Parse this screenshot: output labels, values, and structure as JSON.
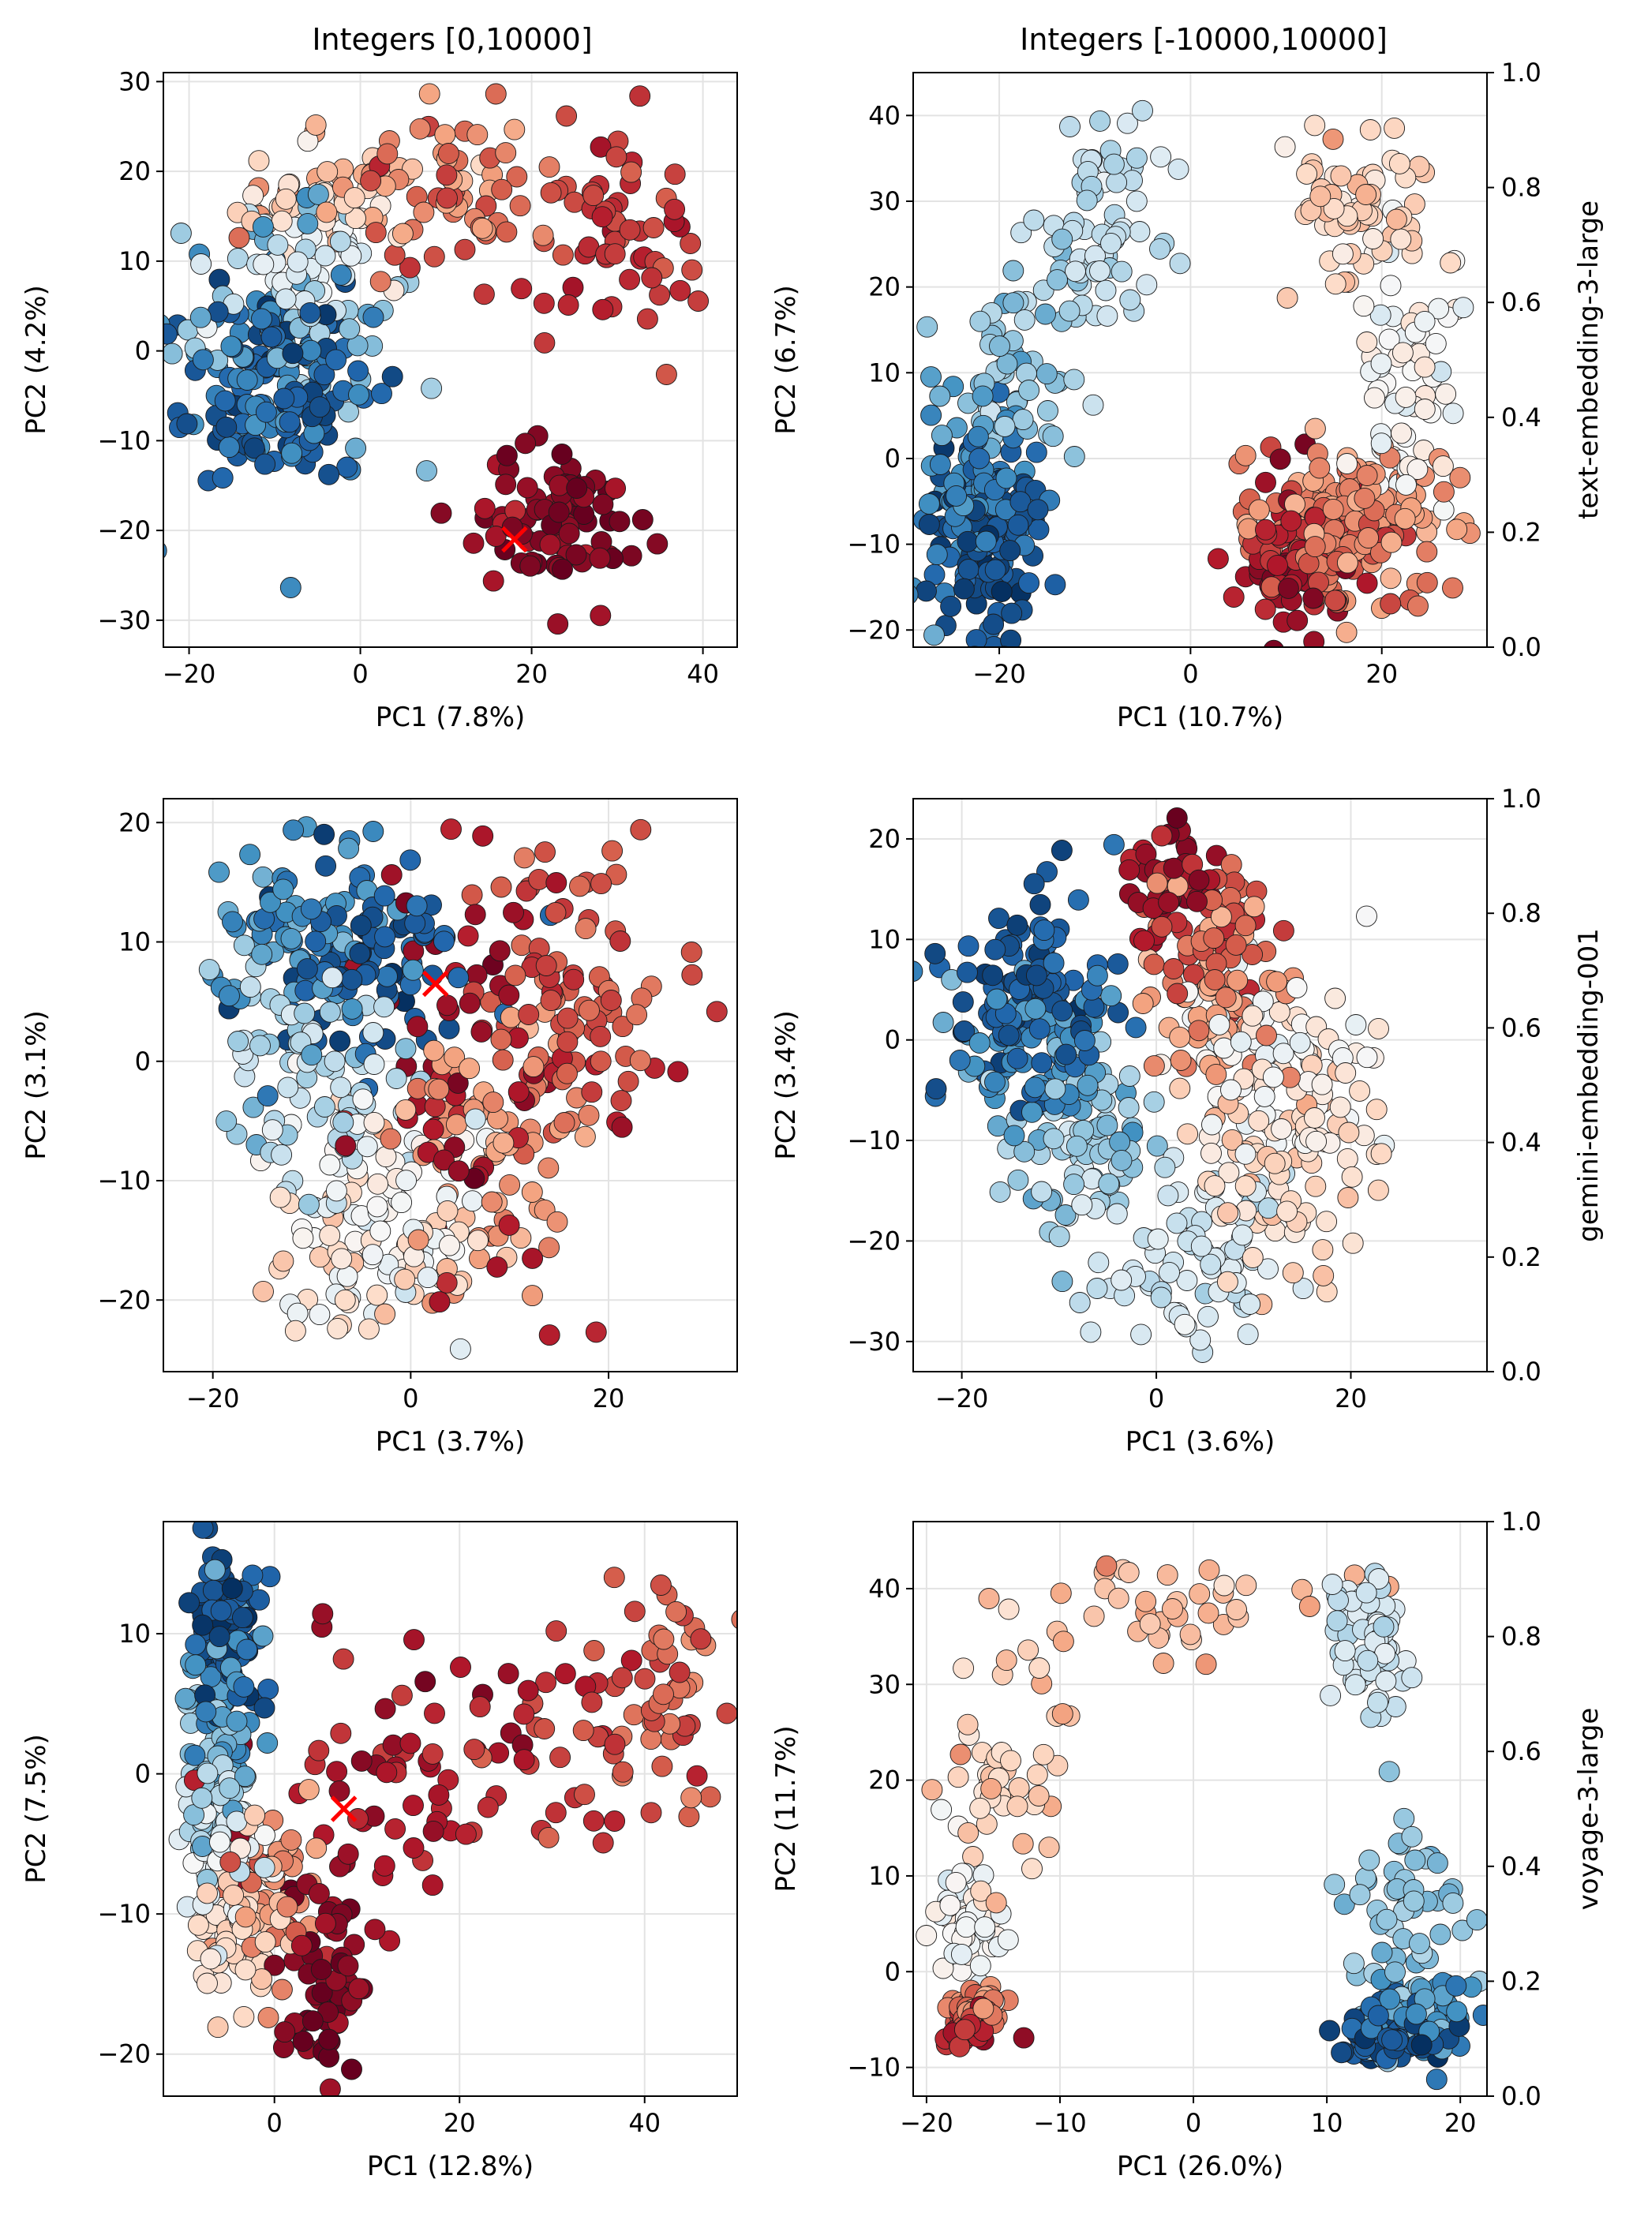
{
  "figure": {
    "column_titles": [
      "Integers [0,10000]",
      "Integers [-10000,10000]"
    ],
    "row_labels": [
      "text-embedding-3-large",
      "gemini-embedding-001",
      "voyage-3-large"
    ],
    "colorbar_ticks": [
      "0.0",
      "0.2",
      "0.4",
      "0.6",
      "0.8",
      "1.0"
    ],
    "colormap": [
      "#053061",
      "#2166ac",
      "#4393c3",
      "#92c5de",
      "#d1e5f0",
      "#f7f7f7",
      "#fddbc7",
      "#f4a582",
      "#d6604d",
      "#b2182b",
      "#67001f"
    ],
    "marker_color": "#ff0000"
  },
  "chart_data": [
    {
      "type": "scatter",
      "id": "p11",
      "xlabel": "PC1 (7.8%)",
      "ylabel": "PC2 (4.2%)",
      "xlim": [
        -23,
        44
      ],
      "ylim": [
        -33,
        31
      ],
      "xticks": [
        -20,
        0,
        20,
        40
      ],
      "yticks": [
        -30,
        -20,
        -10,
        0,
        10,
        20,
        30
      ],
      "marker": [
        18,
        -21
      ],
      "clusters": [
        {
          "c": 0.07,
          "x": [
            -10,
            5.5
          ],
          "y": [
            -4,
            5.5
          ],
          "n": 95
        },
        {
          "c": 0.18,
          "x": [
            -11,
            6
          ],
          "y": [
            -2,
            7
          ],
          "n": 70
        },
        {
          "c": 0.3,
          "x": [
            -8,
            7
          ],
          "y": [
            2,
            6
          ],
          "n": 45
        },
        {
          "c": 0.42,
          "x": [
            -6,
            6
          ],
          "y": [
            10,
            4
          ],
          "n": 35
        },
        {
          "c": 0.58,
          "x": [
            -5,
            5
          ],
          "y": [
            16,
            3.5
          ],
          "n": 35
        },
        {
          "c": 0.7,
          "x": [
            6,
            8
          ],
          "y": [
            19,
            4
          ],
          "n": 50
        },
        {
          "c": 0.8,
          "x": [
            14,
            7
          ],
          "y": [
            16,
            4
          ],
          "n": 40
        },
        {
          "c": 0.86,
          "x": [
            30,
            5
          ],
          "y": [
            12,
            7
          ],
          "n": 55
        },
        {
          "c": 0.96,
          "x": [
            24,
            5
          ],
          "y": [
            -19,
            4
          ],
          "n": 80
        }
      ]
    },
    {
      "type": "scatter",
      "id": "p12",
      "xlabel": "PC1 (10.7%)",
      "ylabel": "PC2 (6.7%)",
      "xlim": [
        -29,
        31
      ],
      "ylim": [
        -22,
        45
      ],
      "xticks": [
        -20,
        0,
        20
      ],
      "yticks": [
        -20,
        -10,
        0,
        10,
        20,
        30,
        40
      ],
      "colorbar": true,
      "clusters": [
        {
          "c": 0.06,
          "x": [
            -21,
            3
          ],
          "y": [
            -10,
            5
          ],
          "n": 110
        },
        {
          "c": 0.17,
          "x": [
            -23,
            3
          ],
          "y": [
            -3,
            6
          ],
          "n": 80
        },
        {
          "c": 0.3,
          "x": [
            -18,
            4
          ],
          "y": [
            10,
            6
          ],
          "n": 55
        },
        {
          "c": 0.38,
          "x": [
            -10,
            3
          ],
          "y": [
            26,
            8
          ],
          "n": 70
        },
        {
          "c": 0.5,
          "x": [
            23,
            2.5
          ],
          "y": [
            10,
            9
          ],
          "n": 65
        },
        {
          "c": 0.62,
          "x": [
            16,
            4
          ],
          "y": [
            28,
            5
          ],
          "n": 60
        },
        {
          "c": 0.73,
          "x": [
            18,
            5
          ],
          "y": [
            -7,
            4
          ],
          "n": 120
        },
        {
          "c": 0.83,
          "x": [
            14,
            5
          ],
          "y": [
            -10,
            4
          ],
          "n": 70
        },
        {
          "c": 0.92,
          "x": [
            11,
            3
          ],
          "y": [
            -12,
            5
          ],
          "n": 50
        }
      ]
    },
    {
      "type": "scatter",
      "id": "p21",
      "xlabel": "PC1 (3.7%)",
      "ylabel": "PC2 (3.1%)",
      "xlim": [
        -25,
        33
      ],
      "ylim": [
        -26,
        22
      ],
      "xticks": [
        -20,
        0,
        20
      ],
      "yticks": [
        -20,
        -10,
        0,
        10,
        20
      ],
      "marker": [
        2.5,
        6.5
      ],
      "clusters": [
        {
          "c": 0.08,
          "x": [
            -5,
            5
          ],
          "y": [
            9,
            4
          ],
          "n": 90
        },
        {
          "c": 0.2,
          "x": [
            -10,
            5
          ],
          "y": [
            10,
            5
          ],
          "n": 70
        },
        {
          "c": 0.35,
          "x": [
            -10,
            5
          ],
          "y": [
            -2,
            5
          ],
          "n": 70
        },
        {
          "c": 0.48,
          "x": [
            -4,
            5
          ],
          "y": [
            -12,
            5
          ],
          "n": 70
        },
        {
          "c": 0.6,
          "x": [
            -2,
            5
          ],
          "y": [
            -16,
            4
          ],
          "n": 60
        },
        {
          "c": 0.72,
          "x": [
            8,
            5
          ],
          "y": [
            -6,
            6
          ],
          "n": 70
        },
        {
          "c": 0.82,
          "x": [
            17,
            5
          ],
          "y": [
            6,
            5
          ],
          "n": 80
        },
        {
          "c": 0.92,
          "x": [
            8,
            7
          ],
          "y": [
            0,
            10
          ],
          "n": 70
        }
      ]
    },
    {
      "type": "scatter",
      "id": "p22",
      "xlabel": "PC1 (3.6%)",
      "ylabel": "PC2 (3.4%)",
      "xlim": [
        -25,
        34
      ],
      "ylim": [
        -33,
        24
      ],
      "xticks": [
        -20,
        0,
        20
      ],
      "yticks": [
        -30,
        -20,
        -10,
        0,
        10,
        20
      ],
      "colorbar": true,
      "clusters": [
        {
          "c": 0.07,
          "x": [
            -13,
            4
          ],
          "y": [
            5,
            5
          ],
          "n": 110
        },
        {
          "c": 0.2,
          "x": [
            -12,
            4
          ],
          "y": [
            -2,
            5
          ],
          "n": 70
        },
        {
          "c": 0.32,
          "x": [
            -8,
            4
          ],
          "y": [
            -10,
            5
          ],
          "n": 70
        },
        {
          "c": 0.4,
          "x": [
            3,
            5
          ],
          "y": [
            -22,
            4
          ],
          "n": 80
        },
        {
          "c": 0.5,
          "x": [
            12,
            5
          ],
          "y": [
            -2,
            6
          ],
          "n": 80
        },
        {
          "c": 0.6,
          "x": [
            14,
            5
          ],
          "y": [
            -10,
            6
          ],
          "n": 90
        },
        {
          "c": 0.72,
          "x": [
            6,
            4
          ],
          "y": [
            4,
            6
          ],
          "n": 60
        },
        {
          "c": 0.82,
          "x": [
            6,
            3
          ],
          "y": [
            12,
            4
          ],
          "n": 50
        },
        {
          "c": 0.92,
          "x": [
            1,
            3
          ],
          "y": [
            16,
            3
          ],
          "n": 40
        }
      ]
    },
    {
      "type": "scatter",
      "id": "p31",
      "xlabel": "PC1 (12.8%)",
      "ylabel": "PC2 (7.5%)",
      "xlim": [
        -12,
        50
      ],
      "ylim": [
        -23,
        18
      ],
      "xticks": [
        0,
        20,
        40
      ],
      "yticks": [
        -20,
        -10,
        0,
        10
      ],
      "marker": [
        7.5,
        -2.5
      ],
      "clusters": [
        {
          "c": 0.06,
          "x": [
            -5,
            1.8
          ],
          "y": [
            10,
            3
          ],
          "n": 90
        },
        {
          "c": 0.2,
          "x": [
            -6,
            2
          ],
          "y": [
            5,
            4
          ],
          "n": 55
        },
        {
          "c": 0.32,
          "x": [
            -6,
            2
          ],
          "y": [
            -1,
            4
          ],
          "n": 55
        },
        {
          "c": 0.45,
          "x": [
            -6,
            2
          ],
          "y": [
            -5,
            3
          ],
          "n": 45
        },
        {
          "c": 0.6,
          "x": [
            -4,
            2.5
          ],
          "y": [
            -11,
            3
          ],
          "n": 50
        },
        {
          "c": 0.72,
          "x": [
            -1,
            3
          ],
          "y": [
            -9,
            3
          ],
          "n": 50
        },
        {
          "c": 0.8,
          "x": [
            43,
            3
          ],
          "y": [
            7,
            4
          ],
          "n": 45
        },
        {
          "c": 0.86,
          "x": [
            30,
            10
          ],
          "y": [
            2,
            4
          ],
          "n": 40
        },
        {
          "c": 0.92,
          "x": [
            12,
            8
          ],
          "y": [
            -1,
            5
          ],
          "n": 65
        },
        {
          "c": 0.97,
          "x": [
            5,
            2.5
          ],
          "y": [
            -16,
            3.5
          ],
          "n": 55
        }
      ]
    },
    {
      "type": "scatter",
      "id": "p32",
      "xlabel": "PC1 (26.0%)",
      "ylabel": "PC2 (11.7%)",
      "xlim": [
        -21,
        22
      ],
      "ylim": [
        -13,
        47
      ],
      "xticks": [
        -20,
        -10,
        0,
        10,
        20
      ],
      "yticks": [
        -10,
        0,
        10,
        20,
        30,
        40
      ],
      "colorbar": true,
      "clusters": [
        {
          "c": 0.06,
          "x": [
            15,
            2
          ],
          "y": [
            -7,
            1.5
          ],
          "n": 70
        },
        {
          "c": 0.18,
          "x": [
            17,
            2
          ],
          "y": [
            -5,
            2
          ],
          "n": 60
        },
        {
          "c": 0.3,
          "x": [
            16,
            2
          ],
          "y": [
            6,
            6
          ],
          "n": 60
        },
        {
          "c": 0.4,
          "x": [
            13,
            1.5
          ],
          "y": [
            34,
            5
          ],
          "n": 70
        },
        {
          "c": 0.5,
          "x": [
            -17,
            1.2
          ],
          "y": [
            5,
            4
          ],
          "n": 50
        },
        {
          "c": 0.62,
          "x": [
            -14,
            2
          ],
          "y": [
            20,
            6
          ],
          "n": 50
        },
        {
          "c": 0.66,
          "x": [
            -2,
            6
          ],
          "y": [
            38,
            2.5
          ],
          "n": 40
        },
        {
          "c": 0.75,
          "x": [
            -16,
            1
          ],
          "y": [
            -4,
            1.2
          ],
          "n": 45
        },
        {
          "c": 0.88,
          "x": [
            -17,
            1
          ],
          "y": [
            -6,
            1
          ],
          "n": 40
        }
      ]
    }
  ]
}
